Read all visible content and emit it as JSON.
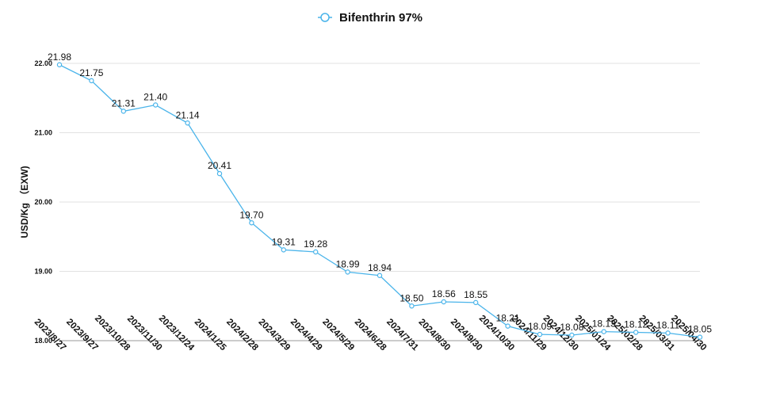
{
  "chart_data": {
    "type": "line",
    "legend_position": "top-center",
    "ylabel": "USD/Kg （EXW)",
    "ylim": [
      18.0,
      22.0
    ],
    "yticks": [
      "18.00",
      "19.00",
      "20.00",
      "21.00",
      "22.00"
    ],
    "grid": true,
    "line_color": "#4ab4ea",
    "x": [
      "2023/8/27",
      "2023/9/27",
      "2023/10/28",
      "2023/11/30",
      "2023/12/24",
      "2024/1/25",
      "2024/2/28",
      "2024/3/29",
      "2024/4/29",
      "2024/5/29",
      "2024/6/28",
      "2024/7/31",
      "2024/8/30",
      "2024/9/30",
      "2024/10/30",
      "2024/11/29",
      "2024/12/30",
      "2025/01/24",
      "2025/02/28",
      "2025/03/31",
      "2025/04/30"
    ],
    "series": [
      {
        "name": "Bifenthrin 97%",
        "values": [
          21.98,
          21.75,
          21.31,
          21.4,
          21.14,
          20.41,
          19.7,
          19.31,
          19.28,
          18.99,
          18.94,
          18.5,
          18.56,
          18.55,
          18.21,
          18.09,
          18.08,
          18.13,
          18.12,
          18.11,
          18.05
        ],
        "labels": [
          "21.98",
          "21.75",
          "21.31",
          "21.40",
          "21.14",
          "20.41",
          "19.70",
          "19.31",
          "19.28",
          "18.99",
          "18.94",
          "18.50",
          "18.56",
          "18.55",
          "18.21",
          "18.09",
          "18.08",
          "18.13",
          "18.12",
          "18.11",
          "18.05"
        ]
      }
    ]
  }
}
